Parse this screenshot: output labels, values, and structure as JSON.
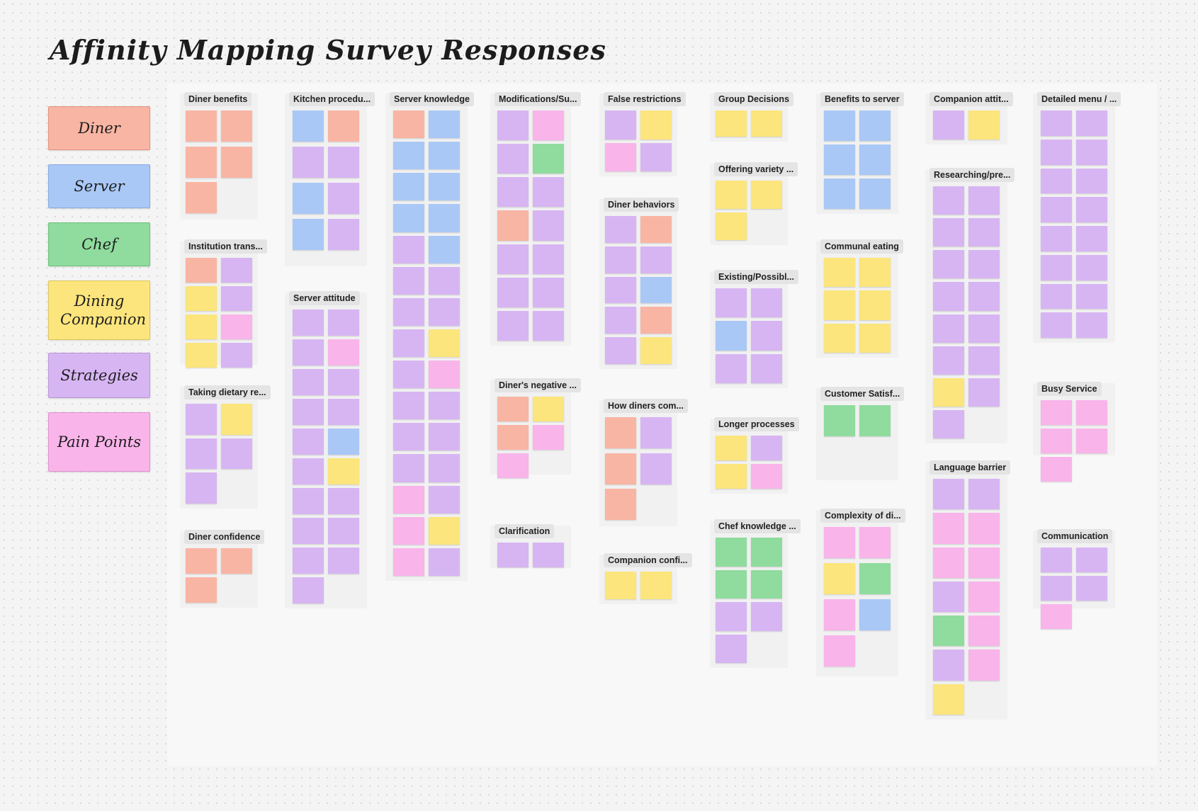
{
  "title": "Affinity Mapping Survey Responses",
  "colors": {
    "diner": "#f9b5a3",
    "server": "#a9c8f6",
    "chef": "#8fdc9e",
    "companion": "#fbe57c",
    "strategies": "#d7b5f3",
    "pain_points": "#f9b4ea"
  },
  "legend": [
    {
      "label": "Diner",
      "color": "#f9b5a3"
    },
    {
      "label": "Server",
      "color": "#a9c8f6"
    },
    {
      "label": "Chef",
      "color": "#8fdc9e"
    },
    {
      "label": "Dining Companion",
      "color": "#fbe57c"
    },
    {
      "label": "Strategies",
      "color": "#d7b5f3"
    },
    {
      "label": "Pain Points",
      "color": "#f9b4ea"
    }
  ],
  "clusters": [
    {
      "label": "Diner benefits",
      "notes": [
        "diner",
        "diner",
        "diner",
        "diner",
        "diner"
      ]
    },
    {
      "label": "Institution trans...",
      "notes": [
        "diner",
        "strategies",
        "companion",
        "strategies",
        "companion",
        "pain_points",
        "companion",
        "strategies"
      ]
    },
    {
      "label": "Taking dietary re...",
      "notes": [
        "strategies",
        "companion",
        "strategies",
        "strategies",
        "strategies"
      ]
    },
    {
      "label": "Diner confidence",
      "notes": [
        "diner",
        "diner",
        "diner"
      ]
    },
    {
      "label": "Kitchen procedu...",
      "notes": [
        "server",
        "diner",
        "strategies",
        "strategies",
        "server",
        "strategies",
        "server",
        "strategies"
      ]
    },
    {
      "label": "Server attitude",
      "notes": [
        "strategies",
        "strategies",
        "strategies",
        "pain_points",
        "strategies",
        "strategies",
        "strategies",
        "strategies",
        "strategies",
        "server",
        "strategies",
        "companion",
        "strategies",
        "strategies",
        "strategies",
        "strategies",
        "strategies",
        "strategies",
        "strategies"
      ]
    },
    {
      "label": "Server knowledge",
      "notes": [
        "diner",
        "server",
        "server",
        "server",
        "server",
        "server",
        "server",
        "server",
        "strategies",
        "server",
        "strategies",
        "strategies",
        "strategies",
        "strategies",
        "strategies",
        "companion",
        "strategies",
        "pain_points",
        "strategies",
        "strategies",
        "strategies",
        "strategies",
        "strategies",
        "strategies",
        "pain_points",
        "strategies",
        "pain_points",
        "companion",
        "pain_points",
        "strategies"
      ]
    },
    {
      "label": "Modifications/Su...",
      "notes": [
        "strategies",
        "pain_points",
        "strategies",
        "chef",
        "strategies",
        "strategies",
        "diner",
        "strategies",
        "strategies",
        "strategies",
        "strategies",
        "strategies",
        "strategies",
        "strategies"
      ]
    },
    {
      "label": "Diner's negative ...",
      "notes": [
        "diner",
        "companion",
        "diner",
        "pain_points",
        "pain_points"
      ]
    },
    {
      "label": "Clarification",
      "notes": [
        "strategies",
        "strategies"
      ]
    },
    {
      "label": "False restrictions",
      "notes": [
        "strategies",
        "companion",
        "pain_points",
        "strategies"
      ]
    },
    {
      "label": "Diner behaviors",
      "notes": [
        "strategies",
        "diner",
        "strategies",
        "strategies",
        "strategies",
        "server",
        "strategies",
        "diner",
        "strategies",
        "companion"
      ]
    },
    {
      "label": "How diners com...",
      "notes": [
        "diner",
        "strategies",
        "diner",
        "strategies",
        "diner"
      ]
    },
    {
      "label": "Companion confi...",
      "notes": [
        "companion",
        "companion"
      ]
    },
    {
      "label": "Group Decisions",
      "notes": [
        "companion",
        "companion"
      ]
    },
    {
      "label": "Offering variety ...",
      "notes": [
        "companion",
        "companion",
        "companion"
      ]
    },
    {
      "label": "Existing/Possibl...",
      "notes": [
        "strategies",
        "strategies",
        "server",
        "strategies",
        "strategies",
        "strategies"
      ]
    },
    {
      "label": "Longer processes",
      "notes": [
        "companion",
        "strategies",
        "companion",
        "pain_points"
      ]
    },
    {
      "label": "Chef knowledge ...",
      "notes": [
        "chef",
        "chef",
        "chef",
        "chef",
        "strategies",
        "strategies",
        "strategies"
      ]
    },
    {
      "label": "Benefits to server",
      "notes": [
        "server",
        "server",
        "server",
        "server",
        "server",
        "server"
      ]
    },
    {
      "label": "Communal eating",
      "notes": [
        "companion",
        "companion",
        "companion",
        "companion",
        "companion",
        "companion"
      ]
    },
    {
      "label": "Customer Satisf...",
      "notes": [
        "chef",
        "chef"
      ]
    },
    {
      "label": "Complexity of di...",
      "notes": [
        "pain_points",
        "pain_points",
        "companion",
        "chef",
        "pain_points",
        "server",
        "pain_points"
      ]
    },
    {
      "label": "Companion attit...",
      "notes": [
        "strategies",
        "companion"
      ]
    },
    {
      "label": "Researching/pre...",
      "notes": [
        "strategies",
        "strategies",
        "strategies",
        "strategies",
        "strategies",
        "strategies",
        "strategies",
        "strategies",
        "strategies",
        "strategies",
        "strategies",
        "strategies",
        "companion",
        "strategies",
        "strategies"
      ]
    },
    {
      "label": "Language barrier",
      "notes": [
        "strategies",
        "strategies",
        "pain_points",
        "pain_points",
        "pain_points",
        "pain_points",
        "strategies",
        "pain_points",
        "chef",
        "pain_points",
        "strategies",
        "pain_points",
        "companion"
      ]
    },
    {
      "label": "Detailed menu / ...",
      "notes": [
        "strategies",
        "strategies",
        "strategies",
        "strategies",
        "strategies",
        "strategies",
        "strategies",
        "strategies",
        "strategies",
        "strategies",
        "strategies",
        "strategies",
        "strategies",
        "strategies",
        "strategies",
        "strategies"
      ]
    },
    {
      "label": "Busy Service",
      "notes": [
        "pain_points",
        "pain_points",
        "pain_points",
        "pain_points",
        "pain_points"
      ]
    },
    {
      "label": "Communication",
      "notes": [
        "strategies",
        "strategies",
        "strategies",
        "strategies",
        "pain_points"
      ]
    }
  ]
}
